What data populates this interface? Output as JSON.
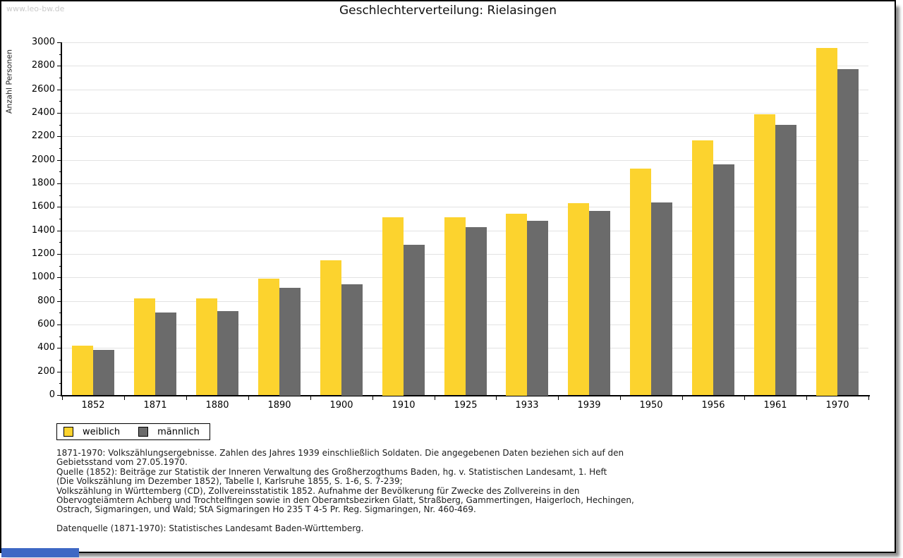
{
  "watermark": "www.leo-bw.de",
  "title": "Geschlechterverteilung: Rielasingen",
  "y_axis_label": "Anzahl Personen",
  "colors": {
    "female_bar": "#FCD32E",
    "male_bar": "#6B6B6B",
    "gridline": "#E2E2E2",
    "watermark_text": "#C9C9C9",
    "axis": "#000000",
    "bottom_left_bar": "#3E68C4"
  },
  "chart_data": {
    "type": "bar",
    "title": "Geschlechterverteilung: Rielasingen",
    "xlabel": "",
    "ylabel": "Anzahl Personen",
    "ylim": [
      0,
      3000
    ],
    "y_tick_major": 200,
    "y_tick_minor": 100,
    "grid": "horizontal-major",
    "legend_position": "bottom-left",
    "categories": [
      "1852",
      "1871",
      "1880",
      "1890",
      "1900",
      "1910",
      "1925",
      "1933",
      "1939",
      "1950",
      "1956",
      "1961",
      "1970"
    ],
    "series": [
      {
        "name": "weiblich",
        "color": "#FCD32E",
        "values": [
          420,
          820,
          820,
          990,
          1145,
          1515,
          1510,
          1545,
          1630,
          1925,
          2165,
          2390,
          2955
        ]
      },
      {
        "name": "männlich",
        "color": "#6B6B6B",
        "values": [
          385,
          700,
          715,
          915,
          945,
          1280,
          1430,
          1485,
          1565,
          1640,
          1960,
          2300,
          2770
        ]
      }
    ]
  },
  "legend": {
    "items": [
      {
        "label": "weiblich"
      },
      {
        "label": "männlich"
      }
    ]
  },
  "footnotes": [
    "1871-1970: Volkszählungsergebnisse. Zahlen des Jahres 1939 einschließlich Soldaten. Die angegebenen Daten beziehen sich auf den",
    "Gebietsstand vom 27.05.1970.",
    "Quelle (1852): Beiträge zur Statistik der Inneren Verwaltung des Großherzogthums Baden, hg. v. Statistischen Landesamt, 1. Heft",
    "(Die Volkszählung im Dezember 1852), Tabelle I, Karlsruhe 1855, S. 1-6, S. 7-239;",
    "Volkszählung in Württemberg (CD), Zollvereinsstatistik 1852. Aufnahme der Bevölkerung für Zwecke des Zollvereins in den",
    "Obervogteiämtern Achberg und Trochtelfingen sowie in den Oberamtsbezirken Glatt, Straßberg, Gammertingen, Haigerloch, Hechingen,",
    "Ostrach, Sigmaringen, und Wald; StA Sigmaringen Ho 235 T 4-5 Pr. Reg. Sigmaringen, Nr. 460-469."
  ],
  "source_note": "Datenquelle (1871-1970): Statistisches Landesamt Baden-Württemberg."
}
